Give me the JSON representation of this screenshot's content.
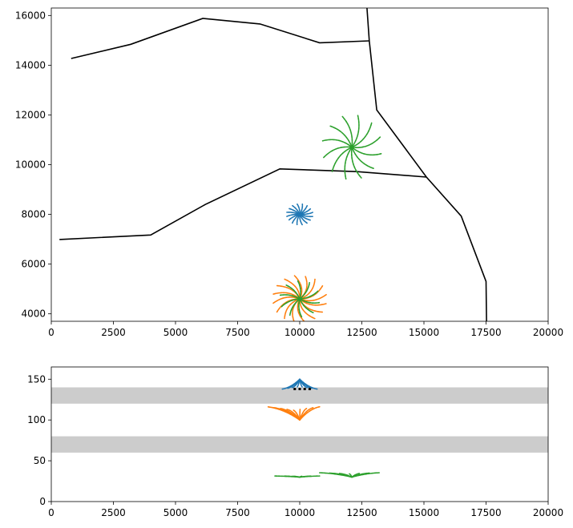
{
  "chart_data": [
    {
      "type": "line",
      "title": "",
      "xlabel": "",
      "ylabel": "",
      "xlim": [
        0,
        20000
      ],
      "ylim": [
        3700,
        16300
      ],
      "xticks": [
        0,
        2500,
        5000,
        7500,
        10000,
        12500,
        15000,
        17500,
        20000
      ],
      "xtick_labels": [
        "0",
        "2500",
        "5000",
        "7500",
        "10000",
        "12500",
        "15000",
        "17500",
        "20000"
      ],
      "yticks": [
        4000,
        6000,
        8000,
        10000,
        12000,
        14000,
        16000
      ],
      "ytick_labels": [
        "4000",
        "6000",
        "8000",
        "10000",
        "12000",
        "14000",
        "16000"
      ],
      "grid": false,
      "boundaries": [
        {
          "color": "#000000",
          "points": [
            [
              800,
              14270
            ],
            [
              3200,
              14840
            ],
            [
              6100,
              15880
            ],
            [
              8400,
              15660
            ],
            [
              10800,
              14900
            ],
            [
              12800,
              14980
            ]
          ]
        },
        {
          "color": "#000000",
          "points": [
            [
              12700,
              16400
            ],
            [
              12800,
              14980
            ],
            [
              13100,
              12200
            ],
            [
              15100,
              9500
            ],
            [
              16500,
              7930
            ],
            [
              17500,
              5300
            ],
            [
              17520,
              3700
            ]
          ]
        },
        {
          "color": "#000000",
          "points": [
            [
              330,
              6990
            ],
            [
              4000,
              7170
            ],
            [
              6200,
              8400
            ],
            [
              9200,
              9830
            ],
            [
              12300,
              9720
            ],
            [
              15100,
              9500
            ]
          ]
        }
      ],
      "clusters": [
        {
          "color": "#1f77b4",
          "center": [
            10000,
            8000
          ],
          "count": 16,
          "radius_x": 530,
          "radius_y": 420,
          "curl": 0.25
        },
        {
          "color": "#ff7f0e",
          "center": [
            10000,
            4600
          ],
          "count": 16,
          "radius_x": 1100,
          "radius_y": 950,
          "curl": 0.6
        },
        {
          "color": "#2ca02c",
          "center": [
            12100,
            10700
          ],
          "count": 12,
          "radius_x": 1200,
          "radius_y": 1300,
          "curl": 0.45
        },
        {
          "color": "#2ca02c",
          "center": [
            10000,
            4600
          ],
          "count": 10,
          "radius_x": 800,
          "radius_y": 750,
          "curl": 0.35
        }
      ]
    },
    {
      "type": "line",
      "title": "",
      "xlabel": "",
      "ylabel": "",
      "xlim": [
        0,
        20000
      ],
      "ylim": [
        0,
        165
      ],
      "xticks": [
        0,
        2500,
        5000,
        7500,
        10000,
        12500,
        15000,
        17500,
        20000
      ],
      "xtick_labels": [
        "0",
        "2500",
        "5000",
        "7500",
        "10000",
        "12500",
        "15000",
        "17500",
        "20000"
      ],
      "yticks": [
        0,
        50,
        100,
        150
      ],
      "ytick_labels": [
        "0",
        "50",
        "100",
        "150"
      ],
      "grid": false,
      "bands": [
        {
          "color": "#cccccc",
          "y0": 120,
          "y1": 140
        },
        {
          "color": "#cccccc",
          "y0": 60,
          "y1": 80
        }
      ],
      "arcs": [
        {
          "color": "#1f77b4",
          "x0": 9300,
          "x1": 10700,
          "peak": [
            10000,
            150
          ],
          "base": 141,
          "count": 8
        },
        {
          "color": "#ff7f0e",
          "x0": 8700,
          "x1": 10800,
          "peak": [
            10000,
            100
          ],
          "base": 112,
          "count": 9
        },
        {
          "color": "#2ca02c",
          "x0": 9000,
          "x1": 10800,
          "peak": [
            10000,
            30
          ],
          "base": 31,
          "count": 6
        },
        {
          "color": "#2ca02c",
          "x0": 10800,
          "x1": 13200,
          "peak": [
            12100,
            30
          ],
          "base": 34,
          "count": 7
        }
      ],
      "markers": {
        "color": "#000000",
        "points": [
          [
            9800,
            138
          ],
          [
            10000,
            138
          ],
          [
            10200,
            138
          ],
          [
            10400,
            138
          ]
        ]
      }
    }
  ]
}
